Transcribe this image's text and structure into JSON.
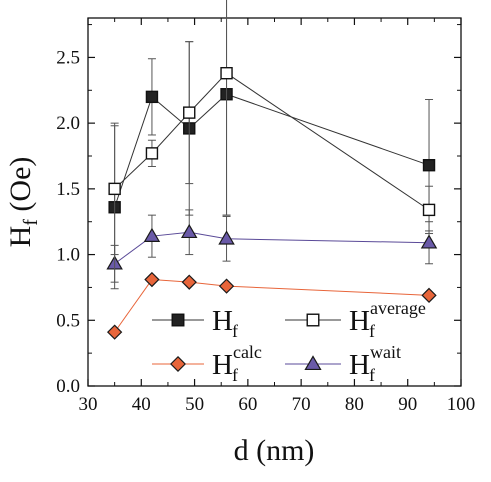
{
  "chart_data": {
    "type": "line",
    "xlabel": "d (nm)",
    "ylabel": {
      "main": "H",
      "sub": "f",
      "unit": " (Oe)"
    },
    "xlim": [
      30,
      100
    ],
    "ylim": [
      0.0,
      2.8
    ],
    "xticks": [
      30,
      40,
      50,
      60,
      70,
      80,
      90,
      100
    ],
    "yticks": [
      0.0,
      0.5,
      1.0,
      1.5,
      2.0,
      2.5
    ],
    "ytick_labels": [
      "0.0",
      "0.5",
      "1.0",
      "1.5",
      "2.0",
      "2.5"
    ],
    "grid": false,
    "legend": "inside-bottom",
    "series": [
      {
        "key": "hf",
        "name": {
          "main": "H",
          "sub": "f",
          "sup": ""
        },
        "marker": "square-filled",
        "fill": "#222222",
        "stroke": "#111111",
        "line_color": "#333333",
        "x": [
          35,
          42,
          49,
          56,
          94
        ],
        "y": [
          1.36,
          2.2,
          1.96,
          2.22,
          1.68
        ],
        "err": [
          0.62,
          0.29,
          0.66,
          0.92,
          0.5
        ]
      },
      {
        "key": "hf_average",
        "name": {
          "main": "H",
          "sub": "f",
          "sup": "average"
        },
        "marker": "square-open",
        "fill": "#ffffff",
        "stroke": "#111111",
        "line_color": "#333333",
        "x": [
          35,
          42,
          49,
          56,
          94
        ],
        "y": [
          1.5,
          1.77,
          2.08,
          2.38,
          1.34
        ],
        "err": [
          0.5,
          0.1,
          0.54,
          1.08,
          0.18
        ]
      },
      {
        "key": "hf_calc",
        "name": {
          "main": "H",
          "sub": "f",
          "sup": "calc"
        },
        "marker": "diamond",
        "fill": "#e8653a",
        "stroke": "#1a1a1a",
        "line_color": "#e8653a",
        "x": [
          35,
          42,
          49,
          56,
          94
        ],
        "y": [
          0.41,
          0.81,
          0.79,
          0.76,
          0.69
        ],
        "err": [
          0,
          0,
          0,
          0,
          0
        ]
      },
      {
        "key": "hf_wait",
        "name": {
          "main": "H",
          "sub": "f",
          "sup": "wait"
        },
        "marker": "triangle",
        "fill": "#6a5aa8",
        "stroke": "#1a1a1a",
        "line_color": "#5a4a98",
        "x": [
          35,
          42,
          49,
          56,
          94
        ],
        "y": [
          0.93,
          1.14,
          1.17,
          1.12,
          1.09
        ],
        "err": [
          0.14,
          0.16,
          0.17,
          0.17,
          0.16
        ]
      }
    ]
  }
}
